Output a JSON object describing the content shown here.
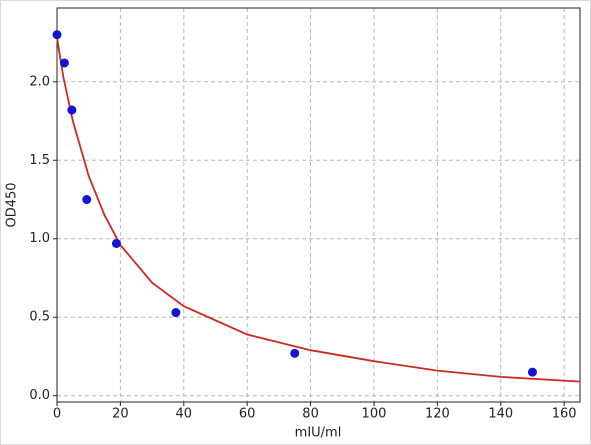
{
  "chart_data": {
    "type": "scatter",
    "xlabel": "mIU/ml",
    "ylabel": "OD450",
    "xlim": [
      0,
      165
    ],
    "ylim": [
      -0.04,
      2.47
    ],
    "xticks": [
      0,
      20,
      40,
      60,
      80,
      100,
      120,
      140,
      160
    ],
    "yticks": [
      {
        "value": 0,
        "label": "0.0"
      },
      0.5,
      {
        "value": 1,
        "label": "1.0"
      },
      1.5,
      {
        "value": 2,
        "label": "2.0"
      }
    ],
    "grid": true,
    "series": [
      {
        "color": "#1414d2",
        "x": [
          0,
          2.34,
          4.69,
          9.38,
          18.75,
          37.5,
          75,
          150
        ],
        "values": [
          2.3,
          2.12,
          1.82,
          1.25,
          0.97,
          0.53,
          0.27,
          0.15
        ]
      },
      {
        "type": "line",
        "color": "#cc2a22",
        "x": [
          0,
          2,
          5,
          10,
          15,
          20,
          30,
          40,
          60,
          80,
          100,
          120,
          140,
          165
        ],
        "values": [
          2.28,
          2.03,
          1.75,
          1.4,
          1.15,
          0.96,
          0.72,
          0.57,
          0.39,
          0.29,
          0.22,
          0.16,
          0.12,
          0.09
        ]
      }
    ]
  }
}
